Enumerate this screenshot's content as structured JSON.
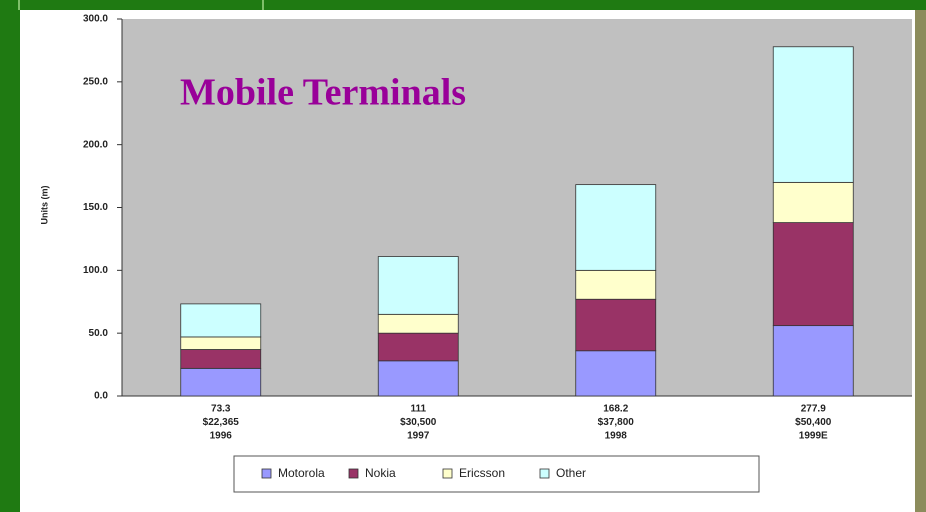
{
  "chart_data": {
    "type": "stacked_bar",
    "title": "Mobile Terminals",
    "y_label": "Units (m)",
    "categories": [
      [
        "73.3",
        "$22,365",
        "1996"
      ],
      [
        "111",
        "$30,500",
        "1997"
      ],
      [
        "168.2",
        "$37,800",
        "1998"
      ],
      [
        "277.9",
        "$50,400",
        "1999E"
      ]
    ],
    "series": [
      {
        "name": "Motorola",
        "color": "#9999ff",
        "values": [
          22,
          28,
          36,
          56
        ]
      },
      {
        "name": "Nokia",
        "color": "#993366",
        "values": [
          15,
          22,
          41,
          82
        ]
      },
      {
        "name": "Ericsson",
        "color": "#ffffcc",
        "values": [
          10,
          15,
          23,
          32
        ]
      },
      {
        "name": "Other",
        "color": "#ccffff",
        "values": [
          26.3,
          46,
          68.2,
          107.9
        ]
      }
    ],
    "ylim": [
      0,
      300
    ],
    "yticks": [
      {
        "value": 0,
        "label": "0.0"
      },
      {
        "value": 50,
        "label": "50.0"
      },
      {
        "value": 100,
        "label": "100.0"
      },
      {
        "value": 150,
        "label": "150.0"
      },
      {
        "value": 200,
        "label": "200.0"
      },
      {
        "value": 250,
        "label": "250.0"
      },
      {
        "value": 300,
        "label": "300.0"
      }
    ],
    "grid": false
  }
}
